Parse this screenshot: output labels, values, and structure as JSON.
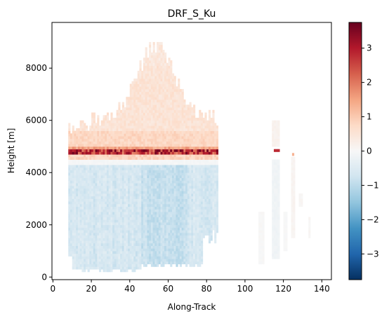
{
  "chart_data": {
    "type": "heatmap",
    "title": "DRF_S_Ku",
    "xlabel": "Along-Track",
    "ylabel": "Height [m]",
    "xlim": [
      -0.5,
      145
    ],
    "ylim": [
      -100,
      9750
    ],
    "x_ticks": [
      0,
      20,
      40,
      60,
      80,
      100,
      120,
      140
    ],
    "y_ticks": [
      0,
      2000,
      4000,
      6000,
      8000
    ],
    "colorbar": {
      "colormap": "RdBu_r",
      "vmin": -3.75,
      "vmax": 3.75,
      "ticks": [
        -3,
        -2,
        -1,
        0,
        1,
        2,
        3
      ],
      "tick_labels": [
        "−3",
        "−2",
        "−1",
        "0",
        "1",
        "2",
        "3"
      ],
      "stops": [
        "#053061",
        "#2166ac",
        "#4393c3",
        "#92c5de",
        "#d1e5f0",
        "#f7f7f7",
        "#fddbc7",
        "#f4a582",
        "#d6604d",
        "#b2182b",
        "#67001f"
      ]
    },
    "regions": [
      {
        "feature": "melting-layer bright band",
        "x_range": [
          8,
          86
        ],
        "y_range": [
          4700,
          4980
        ],
        "value": 3.0
      },
      {
        "feature": "ice above melting layer",
        "x_range": [
          8,
          86
        ],
        "y_range": [
          5000,
          9700
        ],
        "value": 0.5
      },
      {
        "feature": "rain below melting layer",
        "x_range": [
          8,
          86
        ],
        "y_range": [
          0,
          4500
        ],
        "value": -0.6
      },
      {
        "feature": "isolated column",
        "x_range": [
          114,
          118
        ],
        "y_range": [
          700,
          6000
        ],
        "value": -0.15
      },
      {
        "feature": "isolated bright band",
        "x_range": [
          114,
          118
        ],
        "y_range": [
          4750,
          4950
        ],
        "value": 2.6
      },
      {
        "feature": "isolated bright band",
        "x_range": [
          124,
          126
        ],
        "y_range": [
          4650,
          4800
        ],
        "value": 1.2
      }
    ]
  }
}
